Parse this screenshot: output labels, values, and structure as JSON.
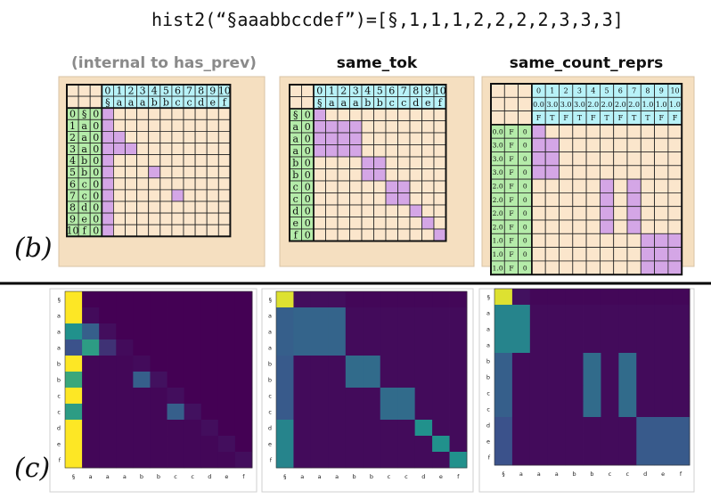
{
  "formula": "hist2(“§aaabbccdef”)=[§,1,1,1,2,2,2,2,3,3,3]",
  "labels": {
    "b": "(b)",
    "c": "(c)"
  },
  "panels": [
    {
      "title": "(internal to has_prev)",
      "title_color": "#8a8a8a"
    },
    {
      "title": "same_tok",
      "title_color": "#111111"
    },
    {
      "title": "same_count_reprs",
      "title_color": "#111111"
    }
  ],
  "colors": {
    "panel_bg": "#f5dfc0",
    "cell_bg": "#fbe6cc",
    "header_cyan": "#b8f2f8",
    "row_green": "#b5ecaa",
    "selected_purple": "#d4a6e6",
    "grid_line": "#222222",
    "divider": "#000000",
    "viridis_low": "#440154",
    "viridis_high": "#fde725"
  },
  "tables": [
    {
      "col_index": [
        "0",
        "1",
        "2",
        "3",
        "4",
        "5",
        "6",
        "7",
        "8",
        "9",
        "10"
      ],
      "col_tokens": [
        "§",
        "a",
        "a",
        "a",
        "b",
        "b",
        "c",
        "c",
        "d",
        "e",
        "f"
      ],
      "row_label_cols": 3,
      "row_labels": [
        [
          "0",
          "§",
          "0"
        ],
        [
          "1",
          "a",
          "0"
        ],
        [
          "2",
          "a",
          "0"
        ],
        [
          "3",
          "a",
          "0"
        ],
        [
          "4",
          "b",
          "0"
        ],
        [
          "5",
          "b",
          "0"
        ],
        [
          "6",
          "c",
          "0"
        ],
        [
          "7",
          "c",
          "0"
        ],
        [
          "8",
          "d",
          "0"
        ],
        [
          "9",
          "e",
          "0"
        ],
        [
          "10",
          "f",
          "0"
        ]
      ],
      "selected": [
        [
          0,
          0
        ],
        [
          1,
          0
        ],
        [
          2,
          0
        ],
        [
          2,
          1
        ],
        [
          3,
          0
        ],
        [
          3,
          1
        ],
        [
          3,
          2
        ],
        [
          4,
          0
        ],
        [
          5,
          0
        ],
        [
          5,
          4
        ],
        [
          6,
          0
        ],
        [
          7,
          0
        ],
        [
          7,
          6
        ],
        [
          8,
          0
        ],
        [
          9,
          0
        ],
        [
          10,
          0
        ]
      ]
    },
    {
      "col_index": [
        "0",
        "1",
        "2",
        "3",
        "4",
        "5",
        "6",
        "7",
        "8",
        "9",
        "10"
      ],
      "col_tokens": [
        "§",
        "a",
        "a",
        "a",
        "b",
        "b",
        "c",
        "c",
        "d",
        "e",
        "f"
      ],
      "row_label_cols": 2,
      "row_labels": [
        [
          "§",
          "0"
        ],
        [
          "a",
          "0"
        ],
        [
          "a",
          "0"
        ],
        [
          "a",
          "0"
        ],
        [
          "b",
          "0"
        ],
        [
          "b",
          "0"
        ],
        [
          "c",
          "0"
        ],
        [
          "c",
          "0"
        ],
        [
          "d",
          "0"
        ],
        [
          "e",
          "0"
        ],
        [
          "f",
          "0"
        ]
      ],
      "selected": [
        [
          0,
          0
        ],
        [
          1,
          0
        ],
        [
          1,
          1
        ],
        [
          1,
          2
        ],
        [
          1,
          3
        ],
        [
          2,
          0
        ],
        [
          2,
          1
        ],
        [
          2,
          2
        ],
        [
          2,
          3
        ],
        [
          3,
          0
        ],
        [
          3,
          1
        ],
        [
          3,
          2
        ],
        [
          3,
          3
        ],
        [
          4,
          4
        ],
        [
          4,
          5
        ],
        [
          5,
          4
        ],
        [
          5,
          5
        ],
        [
          6,
          6
        ],
        [
          6,
          7
        ],
        [
          7,
          6
        ],
        [
          7,
          7
        ],
        [
          8,
          8
        ],
        [
          9,
          9
        ],
        [
          10,
          10
        ]
      ]
    },
    {
      "col_index": [
        "0",
        "1",
        "2",
        "3",
        "4",
        "5",
        "6",
        "7",
        "8",
        "9",
        "10"
      ],
      "col_values": [
        "0.0",
        "3.0",
        "3.0",
        "3.0",
        "2.0",
        "2.0",
        "2.0",
        "2.0",
        "1.0",
        "1.0",
        "1.0"
      ],
      "col_flags": [
        "F",
        "T",
        "F",
        "T",
        "F",
        "T",
        "F",
        "T",
        "T",
        "F",
        "F"
      ],
      "row_label_cols": 3,
      "row_labels": [
        [
          "0.0",
          "F",
          "0"
        ],
        [
          "3.0",
          "F",
          "0"
        ],
        [
          "3.0",
          "F",
          "0"
        ],
        [
          "3.0",
          "F",
          "0"
        ],
        [
          "2.0",
          "F",
          "0"
        ],
        [
          "2.0",
          "F",
          "0"
        ],
        [
          "2.0",
          "F",
          "0"
        ],
        [
          "2.0",
          "F",
          "0"
        ],
        [
          "1.0",
          "F",
          "0"
        ],
        [
          "1.0",
          "F",
          "0"
        ],
        [
          "1.0",
          "F",
          "0"
        ]
      ],
      "selected": [
        [
          0,
          0
        ],
        [
          1,
          0
        ],
        [
          1,
          1
        ],
        [
          2,
          0
        ],
        [
          2,
          1
        ],
        [
          3,
          0
        ],
        [
          3,
          1
        ],
        [
          4,
          5
        ],
        [
          4,
          7
        ],
        [
          5,
          5
        ],
        [
          5,
          7
        ],
        [
          6,
          5
        ],
        [
          6,
          7
        ],
        [
          7,
          5
        ],
        [
          7,
          7
        ],
        [
          8,
          8
        ],
        [
          8,
          9
        ],
        [
          8,
          10
        ],
        [
          9,
          8
        ],
        [
          9,
          9
        ],
        [
          9,
          10
        ],
        [
          10,
          8
        ],
        [
          10,
          9
        ],
        [
          10,
          10
        ]
      ]
    }
  ],
  "heatmaps": {
    "ticks": [
      "§",
      "a",
      "a",
      "a",
      "b",
      "b",
      "c",
      "c",
      "d",
      "e",
      "f"
    ],
    "matrices": [
      [
        [
          1.0,
          0,
          0,
          0,
          0,
          0,
          0,
          0,
          0,
          0,
          0
        ],
        [
          1.0,
          0.03,
          0,
          0,
          0,
          0,
          0,
          0,
          0,
          0,
          0
        ],
        [
          0.5,
          0.3,
          0.04,
          0,
          0,
          0,
          0,
          0,
          0,
          0,
          0
        ],
        [
          0.25,
          0.55,
          0.15,
          0.03,
          0,
          0,
          0,
          0,
          0,
          0,
          0
        ],
        [
          1.0,
          0.02,
          0.02,
          0.02,
          0.03,
          0,
          0,
          0,
          0,
          0,
          0
        ],
        [
          0.6,
          0.02,
          0.02,
          0.02,
          0.3,
          0.05,
          0,
          0,
          0,
          0,
          0
        ],
        [
          1.0,
          0.02,
          0.02,
          0.02,
          0.02,
          0.02,
          0.04,
          0,
          0,
          0,
          0
        ],
        [
          0.55,
          0.02,
          0.02,
          0.02,
          0.02,
          0.02,
          0.3,
          0.05,
          0,
          0,
          0
        ],
        [
          1.0,
          0.02,
          0.02,
          0.02,
          0.02,
          0.02,
          0.02,
          0.02,
          0.04,
          0,
          0
        ],
        [
          1.0,
          0.02,
          0.02,
          0.02,
          0.02,
          0.02,
          0.02,
          0.02,
          0.02,
          0.04,
          0
        ],
        [
          1.0,
          0.02,
          0.02,
          0.02,
          0.02,
          0.02,
          0.02,
          0.02,
          0.02,
          0.02,
          0.04
        ]
      ],
      [
        [
          0.95,
          0.04,
          0.04,
          0.04,
          0.02,
          0.02,
          0.02,
          0.02,
          0.02,
          0.02,
          0.02
        ],
        [
          0.3,
          0.32,
          0.32,
          0.32,
          0.03,
          0.03,
          0.03,
          0.03,
          0.03,
          0.03,
          0.03
        ],
        [
          0.3,
          0.32,
          0.32,
          0.32,
          0.03,
          0.03,
          0.03,
          0.03,
          0.03,
          0.03,
          0.03
        ],
        [
          0.3,
          0.32,
          0.32,
          0.32,
          0.03,
          0.03,
          0.03,
          0.03,
          0.03,
          0.03,
          0.03
        ],
        [
          0.28,
          0.03,
          0.03,
          0.03,
          0.35,
          0.35,
          0.03,
          0.03,
          0.03,
          0.03,
          0.03
        ],
        [
          0.28,
          0.03,
          0.03,
          0.03,
          0.35,
          0.35,
          0.03,
          0.03,
          0.03,
          0.03,
          0.03
        ],
        [
          0.28,
          0.03,
          0.03,
          0.03,
          0.03,
          0.03,
          0.35,
          0.35,
          0.03,
          0.03,
          0.03
        ],
        [
          0.28,
          0.03,
          0.03,
          0.03,
          0.03,
          0.03,
          0.35,
          0.35,
          0.03,
          0.03,
          0.03
        ],
        [
          0.45,
          0.03,
          0.03,
          0.03,
          0.03,
          0.03,
          0.03,
          0.03,
          0.5,
          0.03,
          0.03
        ],
        [
          0.45,
          0.03,
          0.03,
          0.03,
          0.03,
          0.03,
          0.03,
          0.03,
          0.03,
          0.5,
          0.03
        ],
        [
          0.45,
          0.03,
          0.03,
          0.03,
          0.03,
          0.03,
          0.03,
          0.03,
          0.03,
          0.03,
          0.5
        ]
      ],
      [
        [
          0.95,
          0.05,
          0.02,
          0.02,
          0.02,
          0.02,
          0.02,
          0.02,
          0.02,
          0.02,
          0.02
        ],
        [
          0.45,
          0.45,
          0.03,
          0.03,
          0.03,
          0.03,
          0.03,
          0.03,
          0.03,
          0.03,
          0.03
        ],
        [
          0.45,
          0.45,
          0.03,
          0.03,
          0.03,
          0.03,
          0.03,
          0.03,
          0.03,
          0.03,
          0.03
        ],
        [
          0.45,
          0.45,
          0.03,
          0.03,
          0.03,
          0.03,
          0.03,
          0.03,
          0.03,
          0.03,
          0.03
        ],
        [
          0.3,
          0.03,
          0.03,
          0.03,
          0.03,
          0.35,
          0.03,
          0.35,
          0.03,
          0.03,
          0.03
        ],
        [
          0.3,
          0.03,
          0.03,
          0.03,
          0.03,
          0.35,
          0.03,
          0.35,
          0.03,
          0.03,
          0.03
        ],
        [
          0.3,
          0.03,
          0.03,
          0.03,
          0.03,
          0.35,
          0.03,
          0.35,
          0.03,
          0.03,
          0.03
        ],
        [
          0.3,
          0.03,
          0.03,
          0.03,
          0.03,
          0.35,
          0.03,
          0.35,
          0.03,
          0.03,
          0.03
        ],
        [
          0.25,
          0.03,
          0.03,
          0.03,
          0.03,
          0.03,
          0.03,
          0.03,
          0.28,
          0.28,
          0.28
        ],
        [
          0.25,
          0.03,
          0.03,
          0.03,
          0.03,
          0.03,
          0.03,
          0.03,
          0.28,
          0.28,
          0.28
        ],
        [
          0.25,
          0.03,
          0.03,
          0.03,
          0.03,
          0.03,
          0.03,
          0.03,
          0.28,
          0.28,
          0.28
        ]
      ]
    ]
  }
}
